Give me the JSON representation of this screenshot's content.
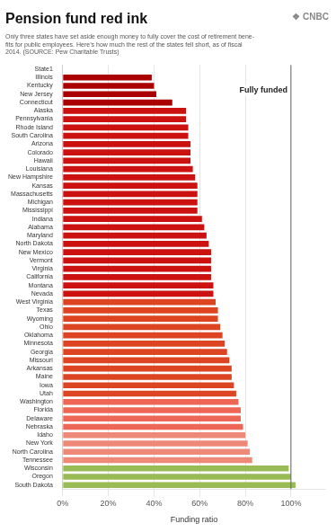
{
  "chart_data": {
    "type": "bar",
    "orientation": "horizontal",
    "title": "Pension fund red ink",
    "subtitle": "Only three states have set aside enough money to fully cover the cost of retirement bene-\nfits for public employees. Here’s how much the rest of the states fell short, as of fiscal\n2014. (SOURCE: Pew Charitable Trusts)",
    "credit": "❖ CNBC",
    "xlabel": "Funding ratio",
    "categories": [
      "State1",
      "Illinois",
      "Kentucky",
      "New Jersey",
      "Connecticut",
      "Alaska",
      "Pennsylvania",
      "Rhode Island",
      "South Carolina",
      "Arizona",
      "Colorado",
      "Hawaii",
      "Louisiana",
      "New Hampshire",
      "Kansas",
      "Massachusetts",
      "Michigan",
      "Mississippi",
      "Indiana",
      "Alabama",
      "Maryland",
      "North Dakota",
      "New Mexico",
      "Vermont",
      "Virginia",
      "California",
      "Montana",
      "Nevada",
      "West Virginia",
      "Texas",
      "Wyoming",
      "Ohio",
      "Oklahoma",
      "Minnesota",
      "Georgia",
      "Missouri",
      "Arkansas",
      "Maine",
      "Iowa",
      "Utah",
      "Washington",
      "Florida",
      "Delaware",
      "Nebraska",
      "Idaho",
      "New York",
      "North Carolina",
      "Tennessee",
      "Wisconsin",
      "Oregon",
      "South Dakota"
    ],
    "values": [
      0,
      39,
      40,
      41,
      48,
      54,
      54,
      55,
      55,
      56,
      56,
      56,
      57,
      58,
      59,
      59,
      59,
      59,
      61,
      62,
      63,
      64,
      65,
      65,
      65,
      65,
      66,
      66,
      67,
      68,
      68,
      69,
      70,
      71,
      72,
      73,
      74,
      74,
      75,
      76,
      77,
      78,
      78,
      79,
      80,
      81,
      82,
      83,
      99,
      100,
      102
    ],
    "colors": [
      "#dddddd",
      "#aa0000",
      "#aa0000",
      "#aa0000",
      "#aa0000",
      "#cc1111",
      "#cc1111",
      "#cc1111",
      "#cc1111",
      "#cc1111",
      "#cc1111",
      "#cc1111",
      "#cc1111",
      "#cc1111",
      "#cc1111",
      "#cc1111",
      "#cc1111",
      "#cc1111",
      "#cc1111",
      "#cc1111",
      "#cc1111",
      "#cc1111",
      "#cc1111",
      "#cc1111",
      "#cc1111",
      "#cc1111",
      "#cc1111",
      "#cc1111",
      "#dd4422",
      "#dd4422",
      "#dd4422",
      "#dd4422",
      "#dd4422",
      "#dd4422",
      "#dd4422",
      "#dd4422",
      "#dd4422",
      "#dd4422",
      "#dd4422",
      "#dd4422",
      "#ee6655",
      "#ee6655",
      "#ee6655",
      "#ee6655",
      "#ee8877",
      "#ee8877",
      "#ee8877",
      "#ee8877",
      "#99bb55",
      "#99bb55",
      "#99bb55"
    ],
    "xlim": [
      0,
      115
    ],
    "xticks": [
      {
        "value": 0,
        "label": "0%"
      },
      {
        "value": 20,
        "label": "20%"
      },
      {
        "value": 40,
        "label": "40%"
      },
      {
        "value": 60,
        "label": "60%"
      },
      {
        "value": 80,
        "label": "80%"
      },
      {
        "value": 100,
        "label": "100%"
      }
    ],
    "grid": true,
    "annotations": [
      {
        "text": "Fully funded",
        "x": 100
      }
    ]
  }
}
